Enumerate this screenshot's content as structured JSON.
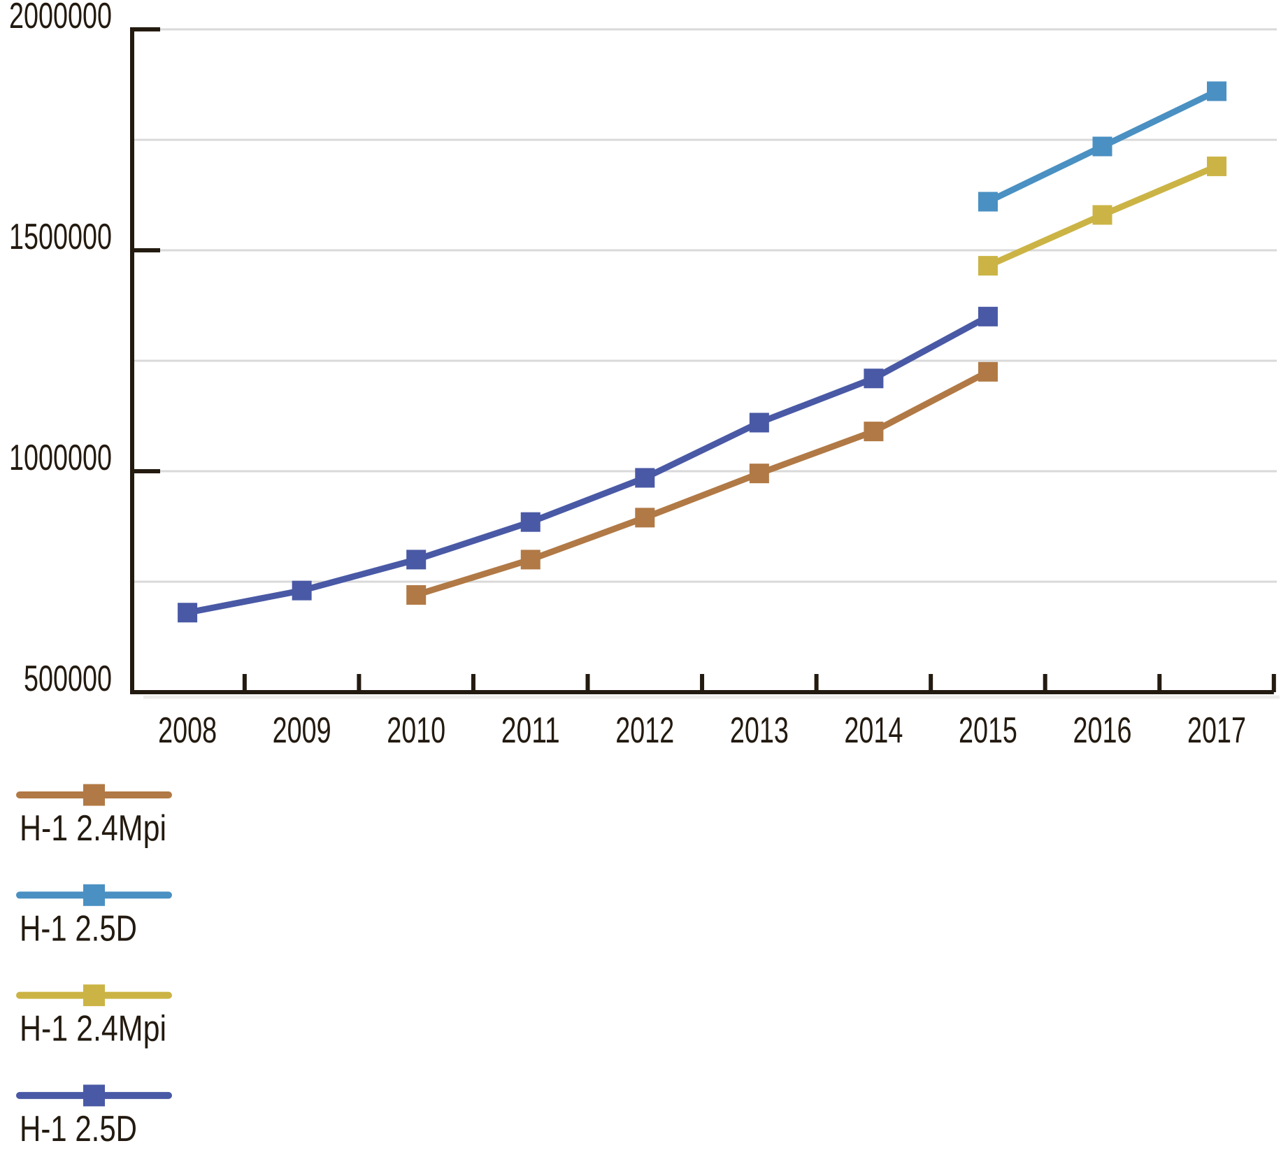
{
  "chart_data": {
    "type": "line",
    "title": "",
    "xlabel": "",
    "ylabel": "",
    "x_categories": [
      "2008",
      "2009",
      "2010",
      "2011",
      "2012",
      "2013",
      "2014",
      "2015",
      "2016",
      "2017"
    ],
    "ylim": [
      500000,
      2000000
    ],
    "y_tick_labels": [
      "2000000",
      "1500000",
      "1000000",
      "500000"
    ],
    "y_tick_values": [
      2000000,
      1500000,
      1000000,
      500000
    ],
    "gridline_values": [
      2000000,
      1750000,
      1500000,
      1250000,
      1000000,
      750000
    ],
    "grid": true,
    "legend_position": "bottom-left",
    "marker": "square",
    "series": [
      {
        "name": "H-1 2.4Mpi",
        "color": "#B17945",
        "years": [
          2010,
          2011,
          2012,
          2013,
          2014,
          2015
        ],
        "values": [
          720000,
          800000,
          895000,
          995000,
          1090000,
          1225000
        ]
      },
      {
        "name": "H-1 2.5D",
        "color": "#4A90C2",
        "years": [
          2015,
          2016,
          2017
        ],
        "values": [
          1610000,
          1735000,
          1860000
        ]
      },
      {
        "name": "H-1 2.4Mpi",
        "color": "#CBB445",
        "years": [
          2015,
          2016,
          2017
        ],
        "values": [
          1465000,
          1580000,
          1690000
        ]
      },
      {
        "name": "H-1 2.5D",
        "color": "#4959A5",
        "years": [
          2008,
          2009,
          2010,
          2011,
          2012,
          2013,
          2014,
          2015
        ],
        "values": [
          680000,
          730000,
          800000,
          885000,
          985000,
          1110000,
          1210000,
          1350000
        ]
      }
    ],
    "colors": {
      "axis": "#231A10",
      "text": "#231A10",
      "grid": "#D9D9D9",
      "axis_shadow": "#E2E0DD"
    }
  }
}
